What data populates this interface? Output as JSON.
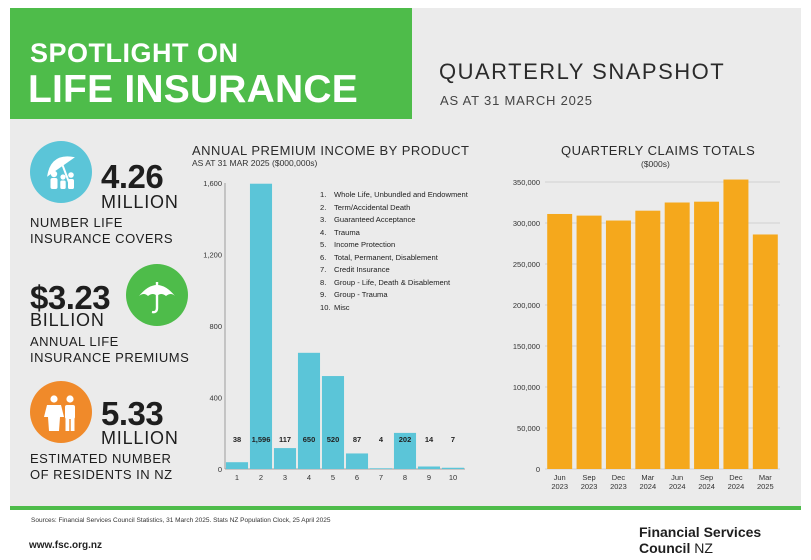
{
  "header": {
    "line1": "SPOTLIGHT ON",
    "line2": "LIFE INSURANCE",
    "snapshot_title": "QUARTERLY SNAPSHOT",
    "snapshot_date": "AS AT 31 MARCH 2025"
  },
  "stats": [
    {
      "value": "4.26",
      "unit": "MILLION",
      "desc1": "NUMBER LIFE",
      "desc2": "INSURANCE COVERS",
      "icon": "umbrella-family-icon",
      "color": "#5bc5d8"
    },
    {
      "value": "$3.23",
      "unit": "BILLION",
      "desc1": "ANNUAL LIFE",
      "desc2": "INSURANCE PREMIUMS",
      "icon": "umbrella-icon",
      "color": "#4ebc4a"
    },
    {
      "value": "5.33",
      "unit": "MILLION",
      "desc1": "ESTIMATED NUMBER",
      "desc2": "OF RESIDENTS IN NZ",
      "icon": "people-icon",
      "color": "#f08a2a"
    }
  ],
  "chart_data": [
    {
      "type": "bar",
      "title": "ANNUAL PREMIUM INCOME BY PRODUCT",
      "subtitle": "AS AT 31 MAR 2025 ($000,000s)",
      "categories": [
        "1",
        "2",
        "3",
        "4",
        "5",
        "6",
        "7",
        "8",
        "9",
        "10"
      ],
      "values": [
        38,
        1596,
        117,
        650,
        520,
        87,
        4,
        202,
        14,
        7
      ],
      "data_labels": [
        "38",
        "1,596",
        "117",
        "650",
        "520",
        "87",
        "4",
        "202",
        "14",
        "7"
      ],
      "ylim": [
        0,
        1600
      ],
      "yticks": [
        0,
        400,
        800,
        1200,
        1600
      ],
      "ytick_labels": [
        "0",
        "400",
        "800",
        "1,200",
        "1,600"
      ],
      "color": "#5bc5d8",
      "legend": [
        {
          "n": "1.",
          "label": "Whole Life, Unbundled and Endowment"
        },
        {
          "n": "2.",
          "label": "Term/Accidental Death"
        },
        {
          "n": "3.",
          "label": "Guaranteed Acceptance"
        },
        {
          "n": "4.",
          "label": "Trauma"
        },
        {
          "n": "5.",
          "label": "Income Protection"
        },
        {
          "n": "6.",
          "label": "Total, Permanent, Disablement"
        },
        {
          "n": "7.",
          "label": "Credit Insurance"
        },
        {
          "n": "8.",
          "label": "Group - Life, Death & Disablement"
        },
        {
          "n": "9.",
          "label": "Group - Trauma"
        },
        {
          "n": "10.",
          "label": "Misc"
        }
      ],
      "grid": false
    },
    {
      "type": "bar",
      "title": "QUARTERLY CLAIMS TOTALS",
      "subtitle": "($000s)",
      "categories": [
        [
          "Jun",
          "2023"
        ],
        [
          "Sep",
          "2023"
        ],
        [
          "Dec",
          "2023"
        ],
        [
          "Mar",
          "2024"
        ],
        [
          "Jun",
          "2024"
        ],
        [
          "Sep",
          "2024"
        ],
        [
          "Dec",
          "2024"
        ],
        [
          "Mar",
          "2025"
        ]
      ],
      "values": [
        311000,
        309000,
        303000,
        315000,
        325000,
        326000,
        353000,
        286000
      ],
      "ylim": [
        0,
        350000
      ],
      "yticks": [
        0,
        50000,
        100000,
        150000,
        200000,
        250000,
        300000,
        350000
      ],
      "ytick_labels": [
        "0",
        "50,000",
        "100,000",
        "150,000",
        "200,000",
        "250,000",
        "300,000",
        "350,000"
      ],
      "color": "#f5a81c",
      "grid": true
    }
  ],
  "footer": {
    "sources": "Sources: Financial Services Council Statistics, 31 March 2025. Stats NZ Population Clock, 25 April 2025",
    "site": "www.fsc.org.nz",
    "org_line1": "Financial Services",
    "org_line2a": "Council",
    "org_line2b": "NZ"
  }
}
